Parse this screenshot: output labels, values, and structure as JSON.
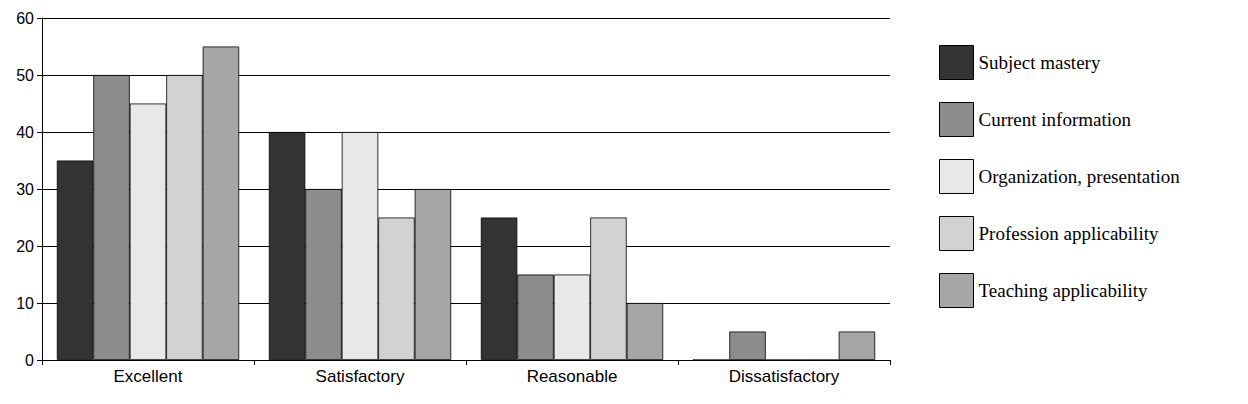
{
  "chart_data": {
    "type": "bar",
    "categories": [
      "Excellent",
      "Satisfactory",
      "Reasonable",
      "Dissatisfactory"
    ],
    "series": [
      {
        "name": "Subject mastery",
        "color": "#333333",
        "values": [
          35,
          40,
          25,
          0
        ]
      },
      {
        "name": "Current information",
        "color": "#8c8c8c",
        "values": [
          50,
          30,
          15,
          5
        ]
      },
      {
        "name": "Organization, presentation",
        "color": "#e8e8e8",
        "values": [
          45,
          40,
          15,
          0
        ]
      },
      {
        "name": "Profession applicability",
        "color": "#d2d2d2",
        "values": [
          50,
          25,
          25,
          0
        ]
      },
      {
        "name": "Teaching applicability",
        "color": "#a6a6a6",
        "values": [
          55,
          30,
          10,
          5
        ]
      }
    ],
    "ylim": [
      0,
      60
    ],
    "yticks": [
      0,
      10,
      20,
      30,
      40,
      50,
      60
    ],
    "grid": true,
    "legend": "right"
  }
}
